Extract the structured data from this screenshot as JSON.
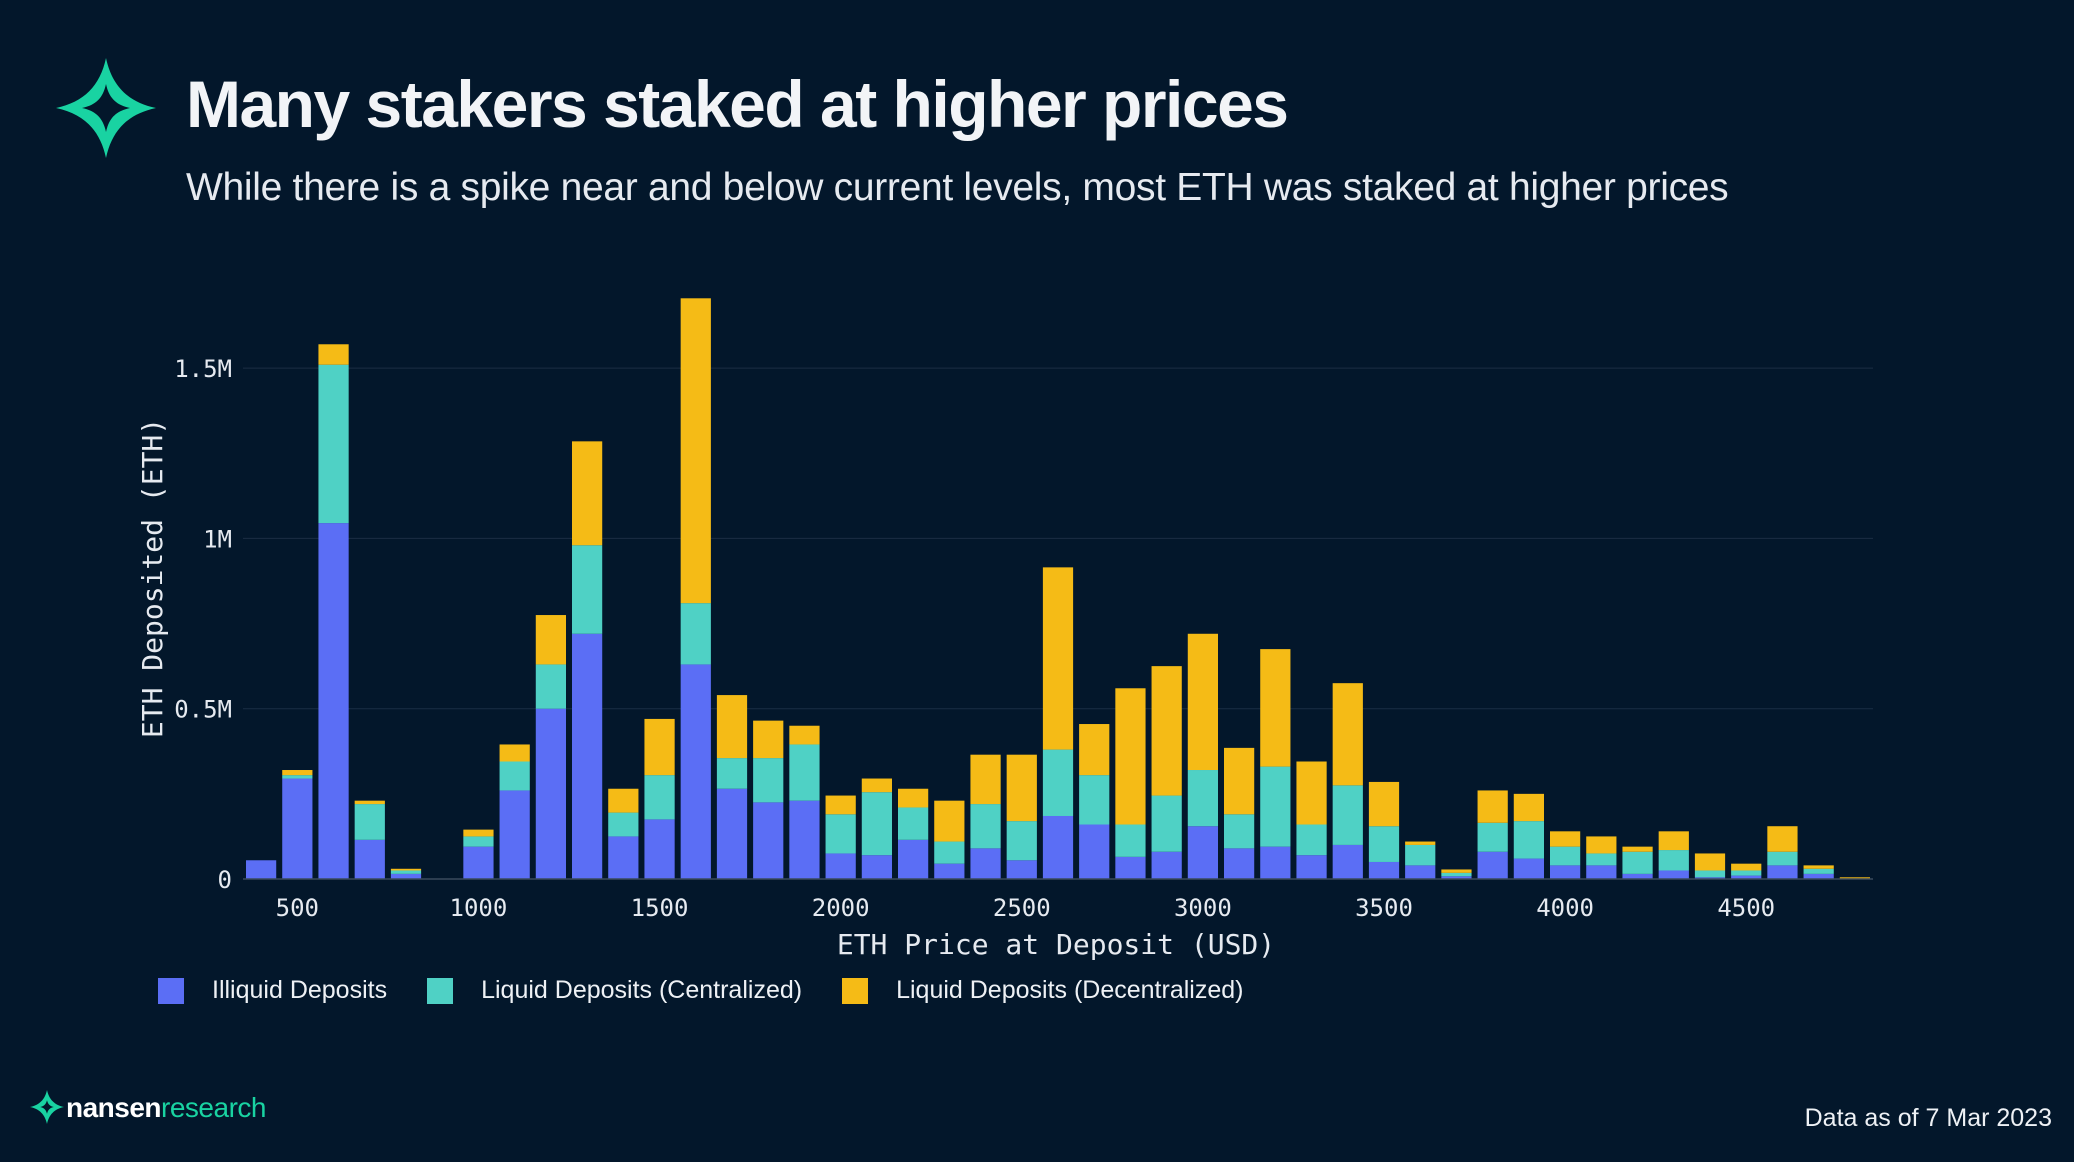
{
  "header": {
    "title": "Many stakers staked at higher prices",
    "subtitle": "While there is a spike near and below current levels, most ETH was staked at higher prices",
    "logo_icon": "star-sparkle-icon"
  },
  "footer": {
    "brand_primary": "nansen",
    "brand_secondary": "research",
    "brand_icon": "star-sparkle-icon",
    "note": "Data as of 7 Mar 2023"
  },
  "colors": {
    "background": "#03172b",
    "illiquid": "#5b6ef5",
    "liquid_centralized": "#4fd1c5",
    "liquid_decentralized": "#f5bb16",
    "brand_accent": "#19d3a2"
  },
  "legend": {
    "items": [
      {
        "label": "Illiquid Deposits",
        "color": "#5b6ef5"
      },
      {
        "label": "Liquid Deposits (Centralized)",
        "color": "#4fd1c5"
      },
      {
        "label": "Liquid Deposits (Decentralized)",
        "color": "#f5bb16"
      }
    ]
  },
  "chart_data": {
    "type": "bar",
    "stacked": true,
    "title": "Many stakers staked at higher prices",
    "xlabel": "ETH Price at Deposit (USD)",
    "ylabel": "ETH Deposited (ETH)",
    "xlim": [
      350,
      4850
    ],
    "ylim": [
      0,
      1700000
    ],
    "x_ticks": [
      500,
      1000,
      1500,
      2000,
      2500,
      3000,
      3500,
      4000,
      4500
    ],
    "x_tick_labels": [
      "500",
      "1000",
      "1500",
      "2000",
      "2500",
      "3000",
      "3500",
      "4000",
      "4500"
    ],
    "y_ticks": [
      0,
      500000,
      1000000,
      1500000
    ],
    "y_tick_labels": [
      "0",
      "0.5M",
      "1M",
      "1.5M"
    ],
    "bin_width": 100,
    "grid": true,
    "legend_position": "bottom-left",
    "x": [
      400,
      500,
      600,
      700,
      800,
      900,
      1000,
      1100,
      1200,
      1300,
      1400,
      1500,
      1600,
      1700,
      1800,
      1900,
      2000,
      2100,
      2200,
      2300,
      2400,
      2500,
      2600,
      2700,
      2800,
      2900,
      3000,
      3100,
      3200,
      3300,
      3400,
      3500,
      3600,
      3700,
      3800,
      3900,
      4000,
      4100,
      4200,
      4300,
      4400,
      4500,
      4600,
      4700,
      4800
    ],
    "series": [
      {
        "name": "Illiquid Deposits",
        "color": "#5b6ef5",
        "values": [
          55000,
          295000,
          1045000,
          115000,
          15000,
          0,
          95000,
          260000,
          500000,
          720000,
          125000,
          175000,
          630000,
          265000,
          225000,
          230000,
          75000,
          70000,
          115000,
          45000,
          90000,
          55000,
          185000,
          160000,
          65000,
          80000,
          155000,
          90000,
          95000,
          70000,
          100000,
          50000,
          40000,
          8000,
          80000,
          60000,
          40000,
          40000,
          15000,
          25000,
          5000,
          10000,
          40000,
          15000,
          0
        ]
      },
      {
        "name": "Liquid Deposits (Centralized)",
        "color": "#4fd1c5",
        "values": [
          0,
          10000,
          465000,
          105000,
          10000,
          0,
          30000,
          85000,
          130000,
          260000,
          70000,
          130000,
          180000,
          90000,
          130000,
          165000,
          115000,
          185000,
          95000,
          65000,
          130000,
          115000,
          195000,
          145000,
          95000,
          165000,
          165000,
          100000,
          235000,
          90000,
          175000,
          105000,
          60000,
          10000,
          85000,
          110000,
          55000,
          35000,
          65000,
          60000,
          20000,
          15000,
          40000,
          15000,
          0
        ]
      },
      {
        "name": "Liquid Deposits (Decentralized)",
        "color": "#f5bb16",
        "values": [
          0,
          15000,
          60000,
          10000,
          5000,
          0,
          20000,
          50000,
          145000,
          305000,
          70000,
          165000,
          895000,
          185000,
          110000,
          55000,
          55000,
          40000,
          55000,
          120000,
          145000,
          195000,
          535000,
          150000,
          400000,
          380000,
          400000,
          195000,
          345000,
          185000,
          300000,
          130000,
          10000,
          10000,
          95000,
          80000,
          45000,
          50000,
          15000,
          55000,
          50000,
          20000,
          75000,
          10000,
          5000
        ]
      }
    ]
  }
}
